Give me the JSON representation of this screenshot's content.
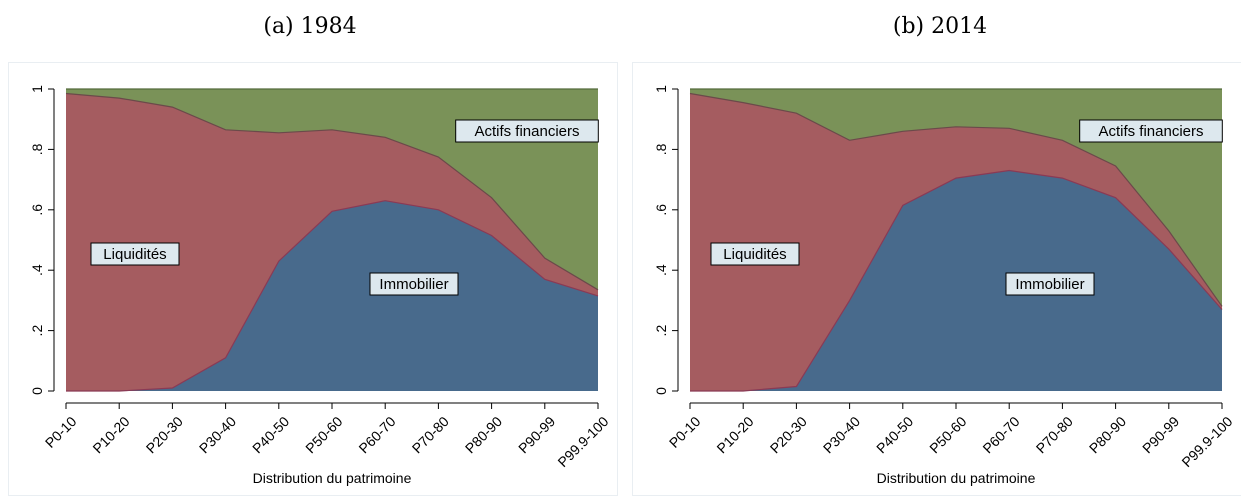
{
  "chart_data": [
    {
      "type": "area",
      "stacked": true,
      "caption": "(a) 1984",
      "xlabel": "Distribution du patrimoine",
      "ylabel": "",
      "ylim": [
        0,
        1
      ],
      "yticks": [
        "0",
        ".2",
        ".4",
        ".6",
        ".8",
        "1"
      ],
      "grid": false,
      "categories": [
        "P0-10",
        "P10-20",
        "P20-30",
        "P30-40",
        "P40-50",
        "P50-60",
        "P60-70",
        "P70-80",
        "P80-90",
        "P90-99",
        "P99.9-100"
      ],
      "series": [
        {
          "name": "Immobilier",
          "color": "#486a8c",
          "values": [
            0.0,
            0.0,
            0.01,
            0.11,
            0.43,
            0.595,
            0.63,
            0.6,
            0.515,
            0.37,
            0.315
          ]
        },
        {
          "name": "Liquidités",
          "color": "#a55c60",
          "values": [
            0.985,
            0.97,
            0.93,
            0.755,
            0.425,
            0.27,
            0.21,
            0.175,
            0.125,
            0.07,
            0.02
          ]
        },
        {
          "name": "Actifs financiers",
          "color": "#7a9258",
          "values": [
            0.015,
            0.03,
            0.06,
            0.135,
            0.145,
            0.135,
            0.16,
            0.225,
            0.36,
            0.56,
            0.665
          ]
        }
      ],
      "annotations": [
        {
          "text": "Liquidités"
        },
        {
          "text": "Immobilier"
        },
        {
          "text": "Actifs financiers"
        }
      ]
    },
    {
      "type": "area",
      "stacked": true,
      "caption": "(b) 2014",
      "xlabel": "Distribution du patrimoine",
      "ylabel": "",
      "ylim": [
        0,
        1
      ],
      "yticks": [
        "0",
        ".2",
        ".4",
        ".6",
        ".8",
        "1"
      ],
      "grid": false,
      "categories": [
        "P0-10",
        "P10-20",
        "P20-30",
        "P30-40",
        "P40-50",
        "P50-60",
        "P60-70",
        "P70-80",
        "P80-90",
        "P90-99",
        "P99.9-100"
      ],
      "series": [
        {
          "name": "Immobilier",
          "color": "#486a8c",
          "values": [
            0.0,
            0.0,
            0.015,
            0.3,
            0.615,
            0.705,
            0.73,
            0.705,
            0.64,
            0.47,
            0.27
          ]
        },
        {
          "name": "Liquidités",
          "color": "#a55c60",
          "values": [
            0.985,
            0.955,
            0.905,
            0.53,
            0.245,
            0.17,
            0.14,
            0.125,
            0.105,
            0.06,
            0.01
          ]
        },
        {
          "name": "Actifs financiers",
          "color": "#7a9258",
          "values": [
            0.015,
            0.045,
            0.08,
            0.17,
            0.14,
            0.125,
            0.13,
            0.17,
            0.255,
            0.47,
            0.72
          ]
        }
      ],
      "annotations": [
        {
          "text": "Liquidités"
        },
        {
          "text": "Immobilier"
        },
        {
          "text": "Actifs financiers"
        }
      ]
    }
  ]
}
